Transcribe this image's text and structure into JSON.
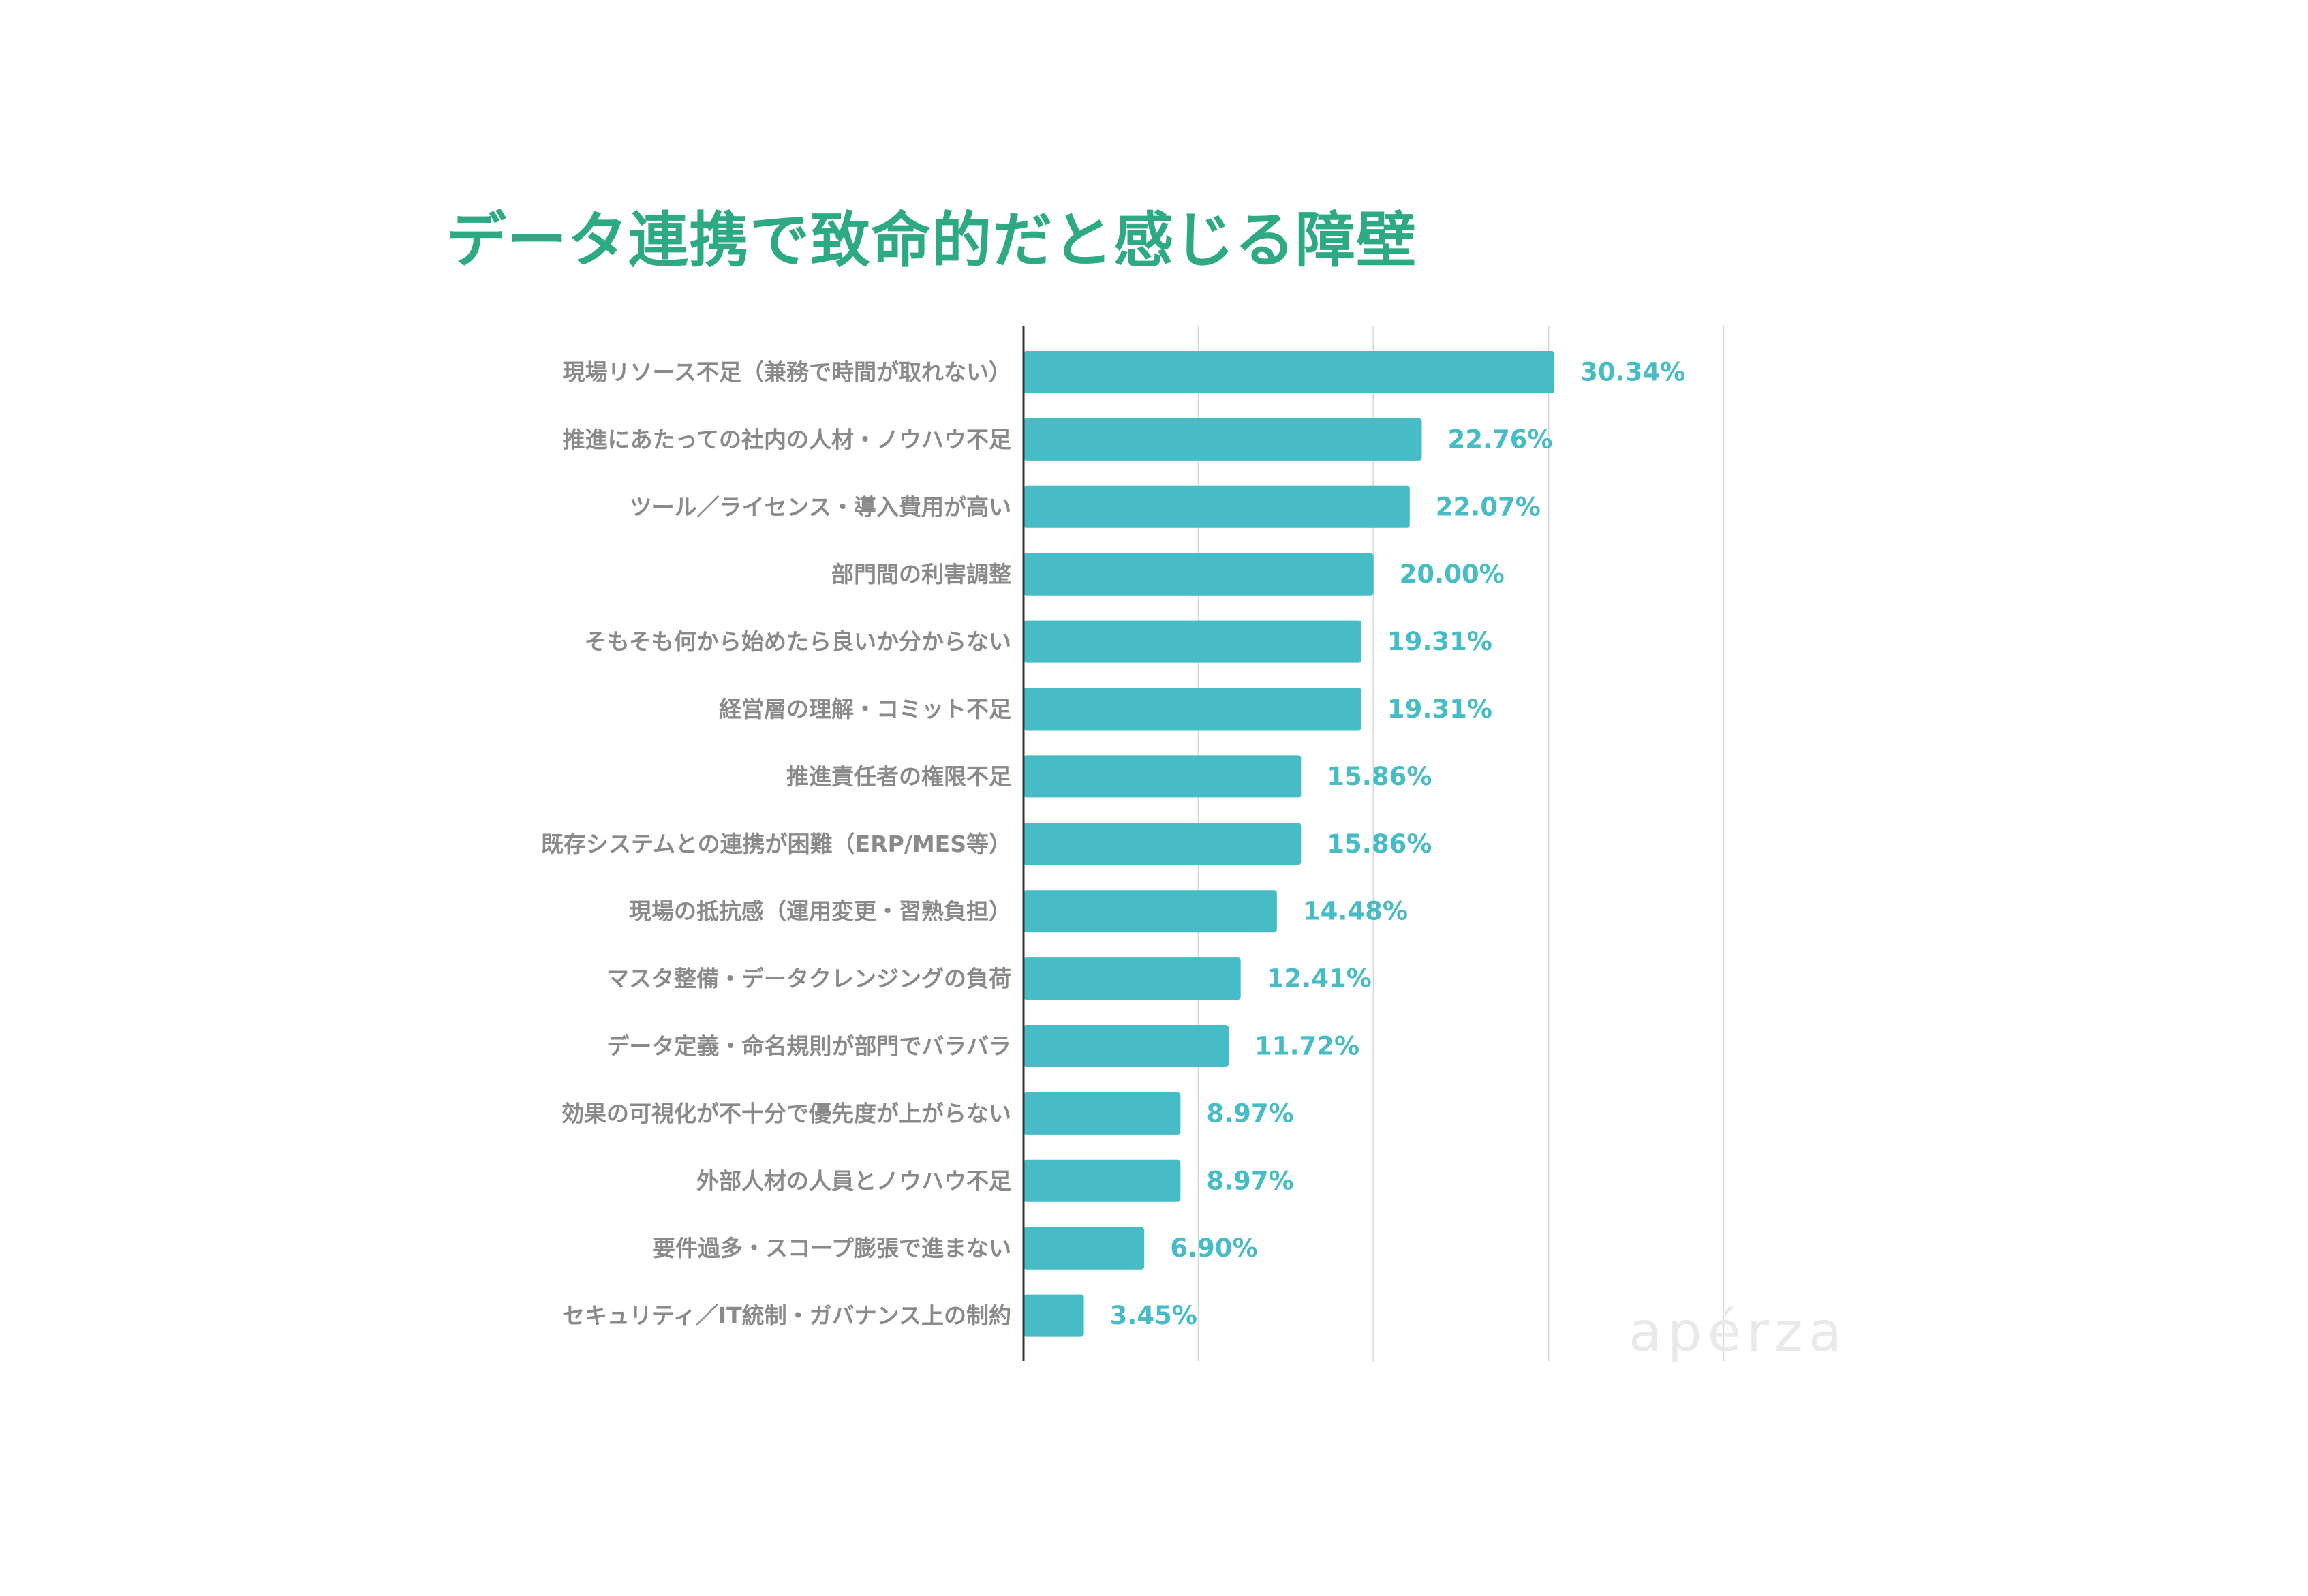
{
  "chart_data": {
    "type": "bar",
    "orientation": "horizontal",
    "title": "データ連携で致命的だと感じる障壁",
    "categories": [
      "現場リソース不足（兼務で時間が取れない）",
      "推進にあたっての社内の人材・ノウハウ不足",
      "ツール／ライセンス・導入費用が高い",
      "部門間の利害調整",
      "そもそも何から始めたら良いか分からない",
      "経営層の理解・コミット不足",
      "推進責任者の権限不足",
      "既存システムとの連携が困難（ERP/MES等）",
      "現場の抵抗感（運用変更・習熟負担）",
      "マスタ整備・データクレンジングの負荷",
      "データ定義・命名規則が部門でバラバラ",
      "効果の可視化が不十分で優先度が上がらない",
      "外部人材の人員とノウハウ不足",
      "要件過多・スコープ膨張で進まない",
      "セキュリティ／IT統制・ガバナンス上の制約"
    ],
    "values": [
      30.34,
      22.76,
      22.07,
      20.0,
      19.31,
      19.31,
      15.86,
      15.86,
      14.48,
      12.41,
      11.72,
      8.97,
      8.97,
      6.9,
      3.45
    ],
    "value_labels": [
      "30.34%",
      "22.76%",
      "22.07%",
      "20.00%",
      "19.31%",
      "19.31%",
      "15.86%",
      "15.86%",
      "14.48%",
      "12.41%",
      "11.72%",
      "8.97%",
      "8.97%",
      "6.90%",
      "3.45%"
    ],
    "xlim": [
      0,
      40
    ],
    "grid": true,
    "colors": {
      "bar": "#45bcc6",
      "value_label": "#45bcc6",
      "title": "#2daa84",
      "category_label": "#8a8a8a",
      "grid": "#d6d6d6",
      "axis": "#333333"
    }
  },
  "watermark": "apérza"
}
